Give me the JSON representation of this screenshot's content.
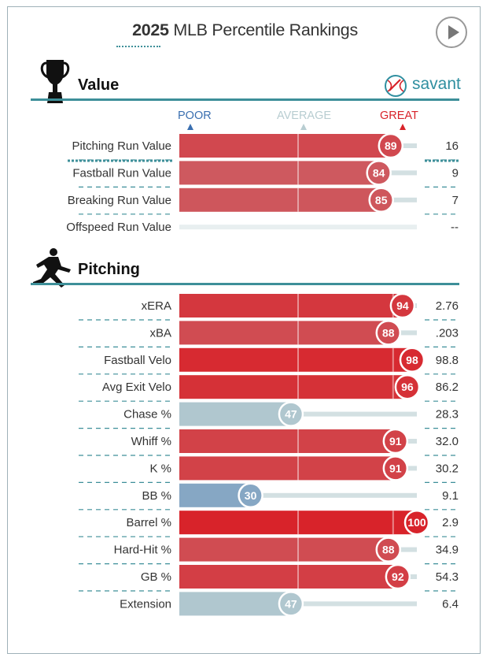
{
  "header": {
    "title_year": "2025",
    "title_rest": "MLB Percentile Rankings"
  },
  "brand": {
    "name": "savant"
  },
  "scale": {
    "poor": "POOR",
    "average": "AVERAGE",
    "great": "GREAT"
  },
  "icons": {
    "play": "play-icon",
    "value": "trophy-icon",
    "pitching": "pitcher-icon",
    "brand": "baseball-icon"
  },
  "colors": {
    "accent": "#3d8f99",
    "great": "#d8232a",
    "poor": "#3a6fb0",
    "average": "#b8cdd1"
  },
  "sections": [
    {
      "title": "Value"
    },
    {
      "title": "Pitching"
    }
  ],
  "chart_data": {
    "type": "bar",
    "orientation": "horizontal",
    "title": "2025 MLB Percentile Rankings",
    "xlim": [
      0,
      100
    ],
    "scale_labels": [
      "POOR",
      "AVERAGE",
      "GREAT"
    ],
    "groups": [
      {
        "name": "Value",
        "metrics": [
          {
            "label": "Pitching Run Value",
            "percentile": 89,
            "value": "16"
          },
          {
            "label": "Fastball Run Value",
            "percentile": 84,
            "value": "9"
          },
          {
            "label": "Breaking Run Value",
            "percentile": 85,
            "value": "7"
          },
          {
            "label": "Offspeed Run Value",
            "percentile": null,
            "value": "--"
          }
        ]
      },
      {
        "name": "Pitching",
        "metrics": [
          {
            "label": "xERA",
            "percentile": 94,
            "value": "2.76"
          },
          {
            "label": "xBA",
            "percentile": 88,
            "value": ".203"
          },
          {
            "label": "Fastball Velo",
            "percentile": 98,
            "value": "98.8"
          },
          {
            "label": "Avg Exit Velo",
            "percentile": 96,
            "value": "86.2"
          },
          {
            "label": "Chase %",
            "percentile": 47,
            "value": "28.3"
          },
          {
            "label": "Whiff %",
            "percentile": 91,
            "value": "32.0"
          },
          {
            "label": "K %",
            "percentile": 91,
            "value": "30.2"
          },
          {
            "label": "BB %",
            "percentile": 30,
            "value": "9.1"
          },
          {
            "label": "Barrel %",
            "percentile": 100,
            "value": "2.9"
          },
          {
            "label": "Hard-Hit %",
            "percentile": 88,
            "value": "34.9"
          },
          {
            "label": "GB %",
            "percentile": 92,
            "value": "54.3"
          },
          {
            "label": "Extension",
            "percentile": 47,
            "value": "6.4"
          }
        ]
      }
    ]
  }
}
